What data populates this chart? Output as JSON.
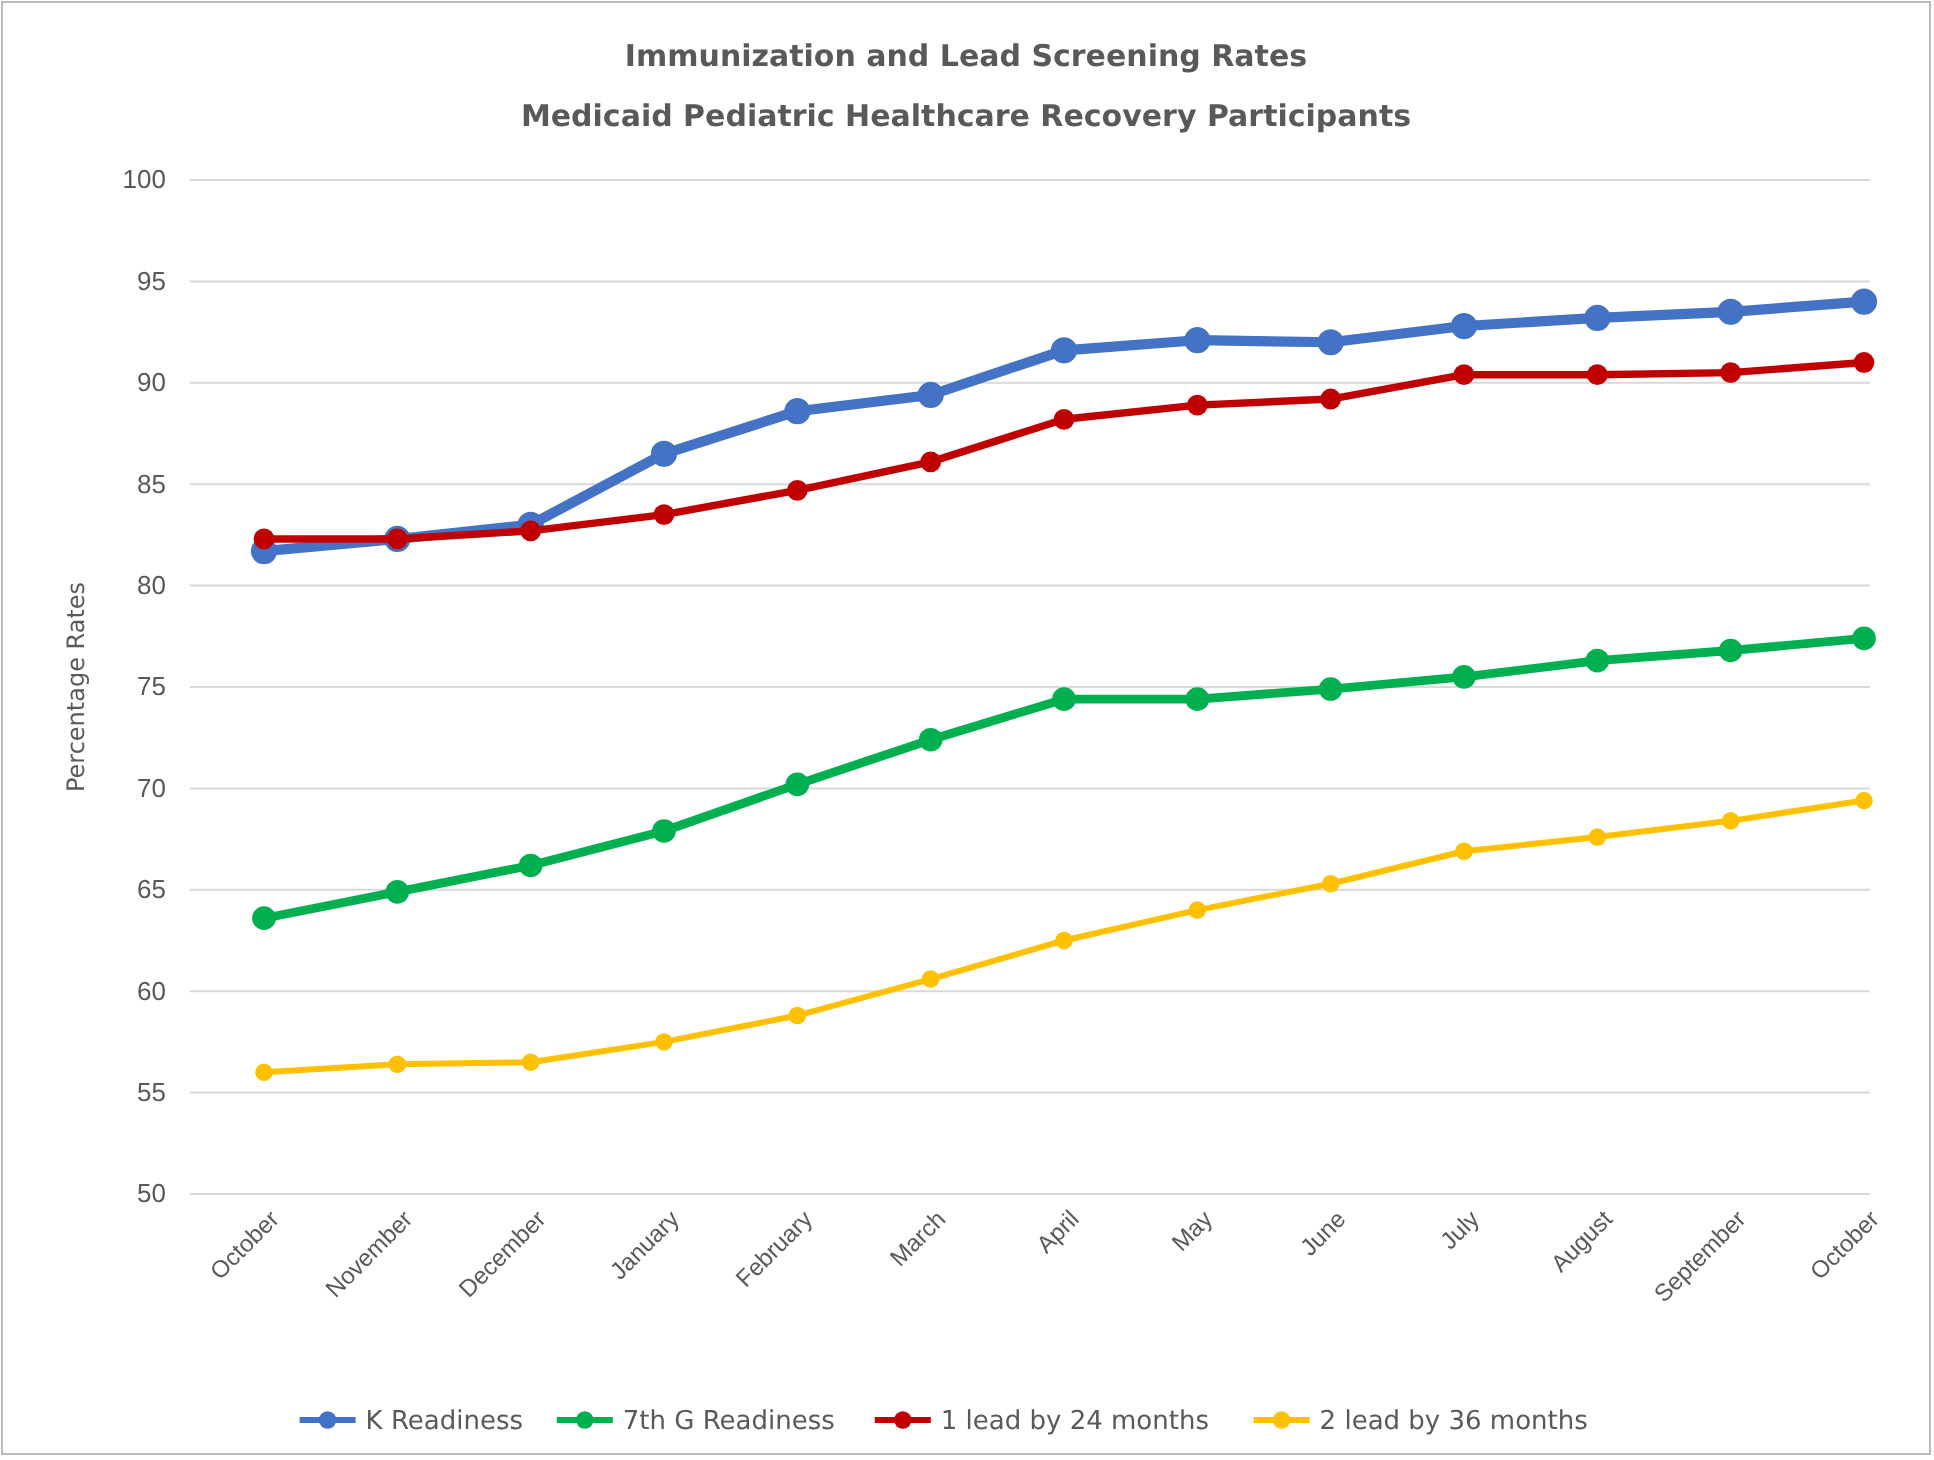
{
  "chart_data": {
    "type": "line",
    "title": "Immunization and Lead Screening Rates",
    "subtitle": "Medicaid Pediatric Healthcare Recovery Participants",
    "ylabel": "Percentage Rates",
    "categories": [
      "October",
      "November",
      "December",
      "January",
      "February",
      "March",
      "April",
      "May",
      "June",
      "July",
      "August",
      "September",
      "October"
    ],
    "series": [
      {
        "name": "K Readiness",
        "color": "#4472c4",
        "values": [
          81.7,
          82.3,
          83.0,
          86.5,
          88.6,
          89.4,
          91.6,
          92.1,
          92.0,
          92.8,
          93.2,
          93.5,
          94.0
        ]
      },
      {
        "name": "7th G Readiness",
        "color": "#00b050",
        "values": [
          63.6,
          64.9,
          66.2,
          67.9,
          70.2,
          72.4,
          74.4,
          74.4,
          74.9,
          75.5,
          76.3,
          76.8,
          77.4
        ]
      },
      {
        "name": "1 lead by 24 months",
        "color": "#c00000",
        "values": [
          82.3,
          82.3,
          82.7,
          83.5,
          84.7,
          86.1,
          88.2,
          88.9,
          89.2,
          90.4,
          90.4,
          90.5,
          91.0
        ]
      },
      {
        "name": "2 lead by 36 months",
        "color": "#ffc000",
        "values": [
          56.0,
          56.4,
          56.5,
          57.5,
          58.8,
          60.6,
          62.5,
          64.0,
          65.3,
          66.9,
          67.6,
          68.4,
          69.4
        ]
      }
    ],
    "ylim": [
      50,
      100
    ],
    "yticks": [
      50,
      55,
      60,
      65,
      70,
      75,
      80,
      85,
      90,
      95,
      100
    ],
    "grid": "y",
    "legend": "bottom",
    "marker": "circle",
    "line_style": "solid"
  }
}
